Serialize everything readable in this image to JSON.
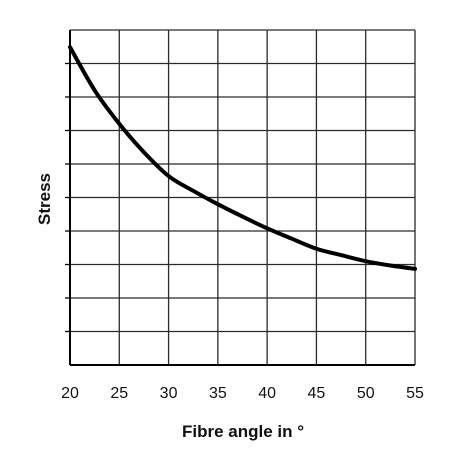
{
  "chart_data": {
    "type": "line",
    "title": "",
    "xlabel": "Fibre angle in °",
    "ylabel": "Stress",
    "xlim": [
      20,
      55
    ],
    "x_ticks": [
      20,
      25,
      30,
      35,
      40,
      45,
      50,
      55
    ],
    "x_tick_labels": [
      "20",
      "25",
      "30",
      "35",
      "40",
      "45",
      "50",
      "55"
    ],
    "grid": true,
    "y_gridlines": 10,
    "y_tick_labels": [],
    "legend": "none",
    "series": [
      {
        "x": [
          20,
          22.5,
          25,
          27.5,
          30,
          32.5,
          35,
          37.5,
          40,
          42.5,
          45,
          47.5,
          50,
          52.5,
          55
        ],
        "values": [
          9.49,
          8.2,
          7.2,
          6.35,
          5.64,
          5.2,
          4.8,
          4.43,
          4.08,
          3.77,
          3.47,
          3.28,
          3.1,
          2.97,
          2.87
        ]
      }
    ],
    "colors": {
      "line": "#000000",
      "grid": "#2a2a2a"
    }
  }
}
